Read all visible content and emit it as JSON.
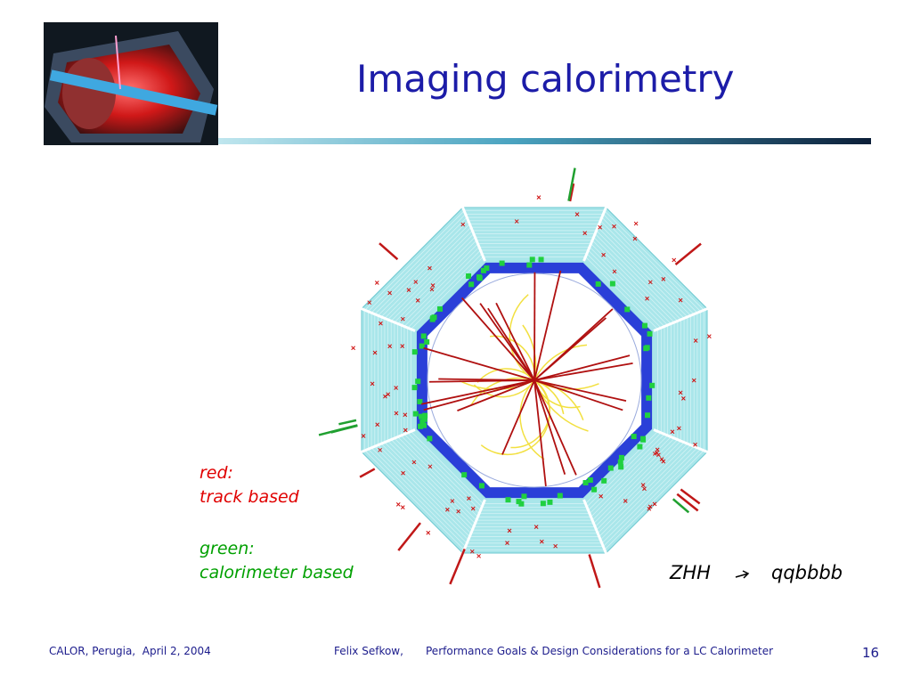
{
  "header": {
    "title": "Imaging calorimetry"
  },
  "legend": {
    "red_label": "red:",
    "red_text": "track based",
    "green_label": "green:",
    "green_text": "calorimeter based"
  },
  "process": {
    "initial": "ZHH",
    "final": "qqbbbb"
  },
  "footer": {
    "left": "CALOR, Perugia,  April 2, 2004",
    "author": "Felix Sefkow,",
    "talk": "Performance Goals & Design Considerations for a LC Calorimeter",
    "page": "16"
  }
}
